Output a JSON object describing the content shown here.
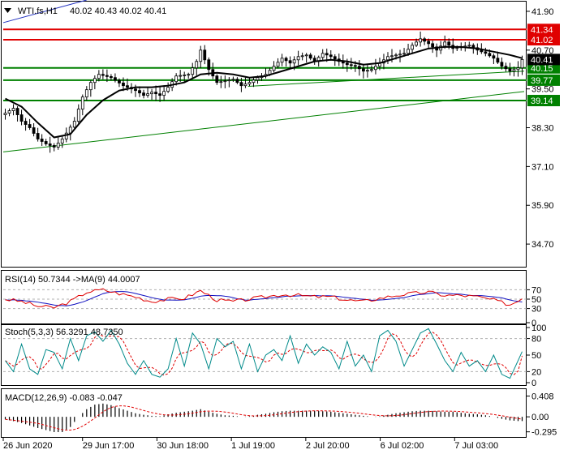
{
  "chart_data": {
    "type": "candlestick",
    "symbol_info": "WTI.fs,H1",
    "header_ohlc": "40.02 40.43 40.02 40.41",
    "price_ylim": [
      34.0,
      42.2
    ],
    "price_ticks": [
      "41.90",
      "40.70",
      "39.50",
      "38.30",
      "37.10",
      "35.90",
      "34.70"
    ],
    "last_price": "40.41",
    "levels": [
      {
        "value": 41.34,
        "label": "41.34",
        "color": "#e00000"
      },
      {
        "value": 41.02,
        "label": "41.02",
        "color": "#e00000"
      },
      {
        "value": 40.15,
        "label": "40.15",
        "color": "#008000"
      },
      {
        "value": 39.77,
        "label": "39.77",
        "color": "#008000"
      },
      {
        "value": 39.14,
        "label": "39.14",
        "color": "#008000"
      }
    ],
    "trendlines": [
      {
        "from": [
          0,
          37.55
        ],
        "to": [
          1.0,
          39.42
        ],
        "color": "#008000"
      },
      {
        "from": [
          0.47,
          39.58
        ],
        "to": [
          1.0,
          40.05
        ],
        "color": "#008000"
      },
      {
        "from": [
          0,
          41.55
        ],
        "to": [
          0.16,
          42.25
        ],
        "color": "#2030c0"
      }
    ],
    "x_tick_labels": [
      "26 Jun 2020",
      "29 Jun 17:00",
      "30 Jun 18:00",
      "1 Jul 19:00",
      "2 Jul 20:00",
      "6 Jul 02:00",
      "7 Jul 03:00"
    ],
    "close_anchors": [
      [
        0,
        38.75
      ],
      [
        2,
        38.9
      ],
      [
        4,
        38.5
      ],
      [
        6,
        38.3
      ],
      [
        8,
        37.95
      ],
      [
        10,
        37.8
      ],
      [
        12,
        37.7
      ],
      [
        14,
        37.95
      ],
      [
        17,
        38.5
      ],
      [
        19,
        39.25
      ],
      [
        21,
        39.7
      ],
      [
        23,
        39.95
      ],
      [
        26,
        39.85
      ],
      [
        29,
        39.6
      ],
      [
        32,
        39.45
      ],
      [
        34,
        39.3
      ],
      [
        36,
        39.4
      ],
      [
        38,
        39.3
      ],
      [
        40,
        39.55
      ],
      [
        42,
        39.9
      ],
      [
        45,
        39.95
      ],
      [
        47,
        40.35
      ],
      [
        48,
        40.7
      ],
      [
        50,
        40.1
      ],
      [
        52,
        39.7
      ],
      [
        54,
        39.75
      ],
      [
        56,
        39.8
      ],
      [
        58,
        39.6
      ],
      [
        60,
        39.7
      ],
      [
        62,
        39.85
      ],
      [
        64,
        39.95
      ],
      [
        66,
        40.2
      ],
      [
        68,
        40.45
      ],
      [
        70,
        40.3
      ],
      [
        72,
        40.5
      ],
      [
        74,
        40.55
      ],
      [
        76,
        40.35
      ],
      [
        78,
        40.6
      ],
      [
        80,
        40.5
      ],
      [
        82,
        40.35
      ],
      [
        84,
        40.25
      ],
      [
        86,
        40.2
      ],
      [
        88,
        40.05
      ],
      [
        90,
        40.1
      ],
      [
        92,
        40.3
      ],
      [
        94,
        40.5
      ],
      [
        96,
        40.55
      ],
      [
        98,
        40.6
      ],
      [
        100,
        40.85
      ],
      [
        102,
        41.05
      ],
      [
        104,
        40.9
      ],
      [
        106,
        40.7
      ],
      [
        108,
        40.95
      ],
      [
        110,
        40.75
      ],
      [
        112,
        40.8
      ],
      [
        114,
        40.85
      ],
      [
        116,
        40.7
      ],
      [
        118,
        40.6
      ],
      [
        120,
        40.45
      ],
      [
        122,
        40.2
      ],
      [
        124,
        40.05
      ],
      [
        126,
        40.15
      ],
      [
        127,
        40.41
      ]
    ],
    "ma_anchors": [
      [
        0,
        39.2
      ],
      [
        4,
        38.95
      ],
      [
        8,
        38.45
      ],
      [
        12,
        38.0
      ],
      [
        16,
        38.1
      ],
      [
        20,
        38.7
      ],
      [
        24,
        39.15
      ],
      [
        28,
        39.45
      ],
      [
        32,
        39.55
      ],
      [
        36,
        39.55
      ],
      [
        40,
        39.6
      ],
      [
        44,
        39.7
      ],
      [
        48,
        39.95
      ],
      [
        52,
        40.0
      ],
      [
        56,
        39.95
      ],
      [
        60,
        39.85
      ],
      [
        64,
        39.9
      ],
      [
        68,
        40.05
      ],
      [
        72,
        40.2
      ],
      [
        76,
        40.35
      ],
      [
        80,
        40.4
      ],
      [
        84,
        40.35
      ],
      [
        88,
        40.25
      ],
      [
        92,
        40.3
      ],
      [
        96,
        40.45
      ],
      [
        100,
        40.6
      ],
      [
        104,
        40.75
      ],
      [
        108,
        40.8
      ],
      [
        112,
        40.8
      ],
      [
        116,
        40.75
      ],
      [
        120,
        40.65
      ],
      [
        124,
        40.55
      ],
      [
        127,
        40.45
      ]
    ],
    "rsi": {
      "label": "RSI(14) 50.7344  ->MA(9) 44.0007",
      "ticks": [
        "70",
        "50",
        "30",
        "0"
      ],
      "levels": [
        70,
        50,
        30
      ],
      "ylim": [
        0,
        100
      ],
      "anchors": [
        [
          0,
          50
        ],
        [
          4,
          45
        ],
        [
          8,
          35
        ],
        [
          12,
          32
        ],
        [
          16,
          45
        ],
        [
          20,
          65
        ],
        [
          24,
          70
        ],
        [
          28,
          62
        ],
        [
          32,
          55
        ],
        [
          36,
          45
        ],
        [
          40,
          50
        ],
        [
          44,
          52
        ],
        [
          48,
          68
        ],
        [
          52,
          48
        ],
        [
          56,
          45
        ],
        [
          60,
          50
        ],
        [
          64,
          55
        ],
        [
          68,
          60
        ],
        [
          72,
          58
        ],
        [
          76,
          55
        ],
        [
          80,
          55
        ],
        [
          84,
          48
        ],
        [
          88,
          45
        ],
        [
          92,
          52
        ],
        [
          96,
          58
        ],
        [
          100,
          62
        ],
        [
          104,
          65
        ],
        [
          108,
          58
        ],
        [
          112,
          58
        ],
        [
          116,
          55
        ],
        [
          120,
          48
        ],
        [
          124,
          38
        ],
        [
          127,
          50.7344
        ]
      ],
      "ma_value": 44.0007
    },
    "stoch": {
      "label": "Stoch(5,3,3) 56.3291 48.7350",
      "ticks": [
        "100",
        "80",
        "50",
        "20",
        "0"
      ],
      "levels": [
        80,
        20
      ],
      "ylim": [
        0,
        100
      ],
      "anchors": [
        [
          0,
          40
        ],
        [
          2,
          20
        ],
        [
          4,
          70
        ],
        [
          6,
          25
        ],
        [
          8,
          15
        ],
        [
          10,
          60
        ],
        [
          12,
          55
        ],
        [
          14,
          25
        ],
        [
          16,
          80
        ],
        [
          18,
          40
        ],
        [
          20,
          85
        ],
        [
          22,
          92
        ],
        [
          24,
          75
        ],
        [
          26,
          95
        ],
        [
          28,
          70
        ],
        [
          30,
          35
        ],
        [
          32,
          15
        ],
        [
          34,
          40
        ],
        [
          36,
          15
        ],
        [
          38,
          10
        ],
        [
          40,
          25
        ],
        [
          42,
          80
        ],
        [
          44,
          30
        ],
        [
          46,
          90
        ],
        [
          48,
          70
        ],
        [
          50,
          25
        ],
        [
          52,
          80
        ],
        [
          54,
          65
        ],
        [
          56,
          75
        ],
        [
          58,
          25
        ],
        [
          60,
          70
        ],
        [
          62,
          20
        ],
        [
          64,
          50
        ],
        [
          66,
          60
        ],
        [
          68,
          40
        ],
        [
          70,
          85
        ],
        [
          72,
          35
        ],
        [
          74,
          70
        ],
        [
          76,
          50
        ],
        [
          78,
          65
        ],
        [
          80,
          55
        ],
        [
          82,
          25
        ],
        [
          84,
          75
        ],
        [
          86,
          30
        ],
        [
          88,
          50
        ],
        [
          90,
          20
        ],
        [
          92,
          85
        ],
        [
          94,
          95
        ],
        [
          96,
          75
        ],
        [
          98,
          30
        ],
        [
          100,
          60
        ],
        [
          102,
          90
        ],
        [
          104,
          98
        ],
        [
          106,
          70
        ],
        [
          108,
          40
        ],
        [
          110,
          20
        ],
        [
          112,
          55
        ],
        [
          114,
          30
        ],
        [
          116,
          40
        ],
        [
          118,
          20
        ],
        [
          120,
          50
        ],
        [
          122,
          15
        ],
        [
          124,
          8
        ],
        [
          126,
          40
        ],
        [
          127,
          56.3291
        ]
      ],
      "signal_last": 48.735
    },
    "macd": {
      "label": "MACD(12,26,9) -0.083 -0.047",
      "ticks": [
        "0.408",
        "0.00",
        "-0.295"
      ],
      "ylim": [
        -0.38,
        0.48
      ],
      "anchors": [
        [
          0,
          -0.05
        ],
        [
          4,
          -0.12
        ],
        [
          8,
          -0.22
        ],
        [
          12,
          -0.3
        ],
        [
          14,
          -0.3
        ],
        [
          16,
          -0.2
        ],
        [
          18,
          0.0
        ],
        [
          20,
          0.15
        ],
        [
          22,
          0.24
        ],
        [
          24,
          0.26
        ],
        [
          26,
          0.23
        ],
        [
          28,
          0.17
        ],
        [
          30,
          0.12
        ],
        [
          32,
          0.07
        ],
        [
          34,
          0.04
        ],
        [
          36,
          0.02
        ],
        [
          38,
          0.01
        ],
        [
          40,
          0.05
        ],
        [
          42,
          0.08
        ],
        [
          44,
          0.1
        ],
        [
          46,
          0.12
        ],
        [
          48,
          0.15
        ],
        [
          50,
          0.1
        ],
        [
          52,
          0.06
        ],
        [
          54,
          0.03
        ],
        [
          56,
          0.02
        ],
        [
          58,
          0.0
        ],
        [
          60,
          0.01
        ],
        [
          62,
          0.04
        ],
        [
          64,
          0.06
        ],
        [
          66,
          0.09
        ],
        [
          68,
          0.11
        ],
        [
          70,
          0.12
        ],
        [
          72,
          0.12
        ],
        [
          74,
          0.12
        ],
        [
          76,
          0.12
        ],
        [
          78,
          0.11
        ],
        [
          80,
          0.1
        ],
        [
          82,
          0.08
        ],
        [
          84,
          0.06
        ],
        [
          86,
          0.04
        ],
        [
          88,
          0.02
        ],
        [
          90,
          0.0
        ],
        [
          92,
          0.01
        ],
        [
          94,
          0.04
        ],
        [
          96,
          0.07
        ],
        [
          98,
          0.09
        ],
        [
          100,
          0.11
        ],
        [
          102,
          0.12
        ],
        [
          104,
          0.12
        ],
        [
          106,
          0.11
        ],
        [
          108,
          0.1
        ],
        [
          110,
          0.1
        ],
        [
          112,
          0.08
        ],
        [
          114,
          0.06
        ],
        [
          116,
          0.05
        ],
        [
          118,
          0.03
        ],
        [
          120,
          0.0
        ],
        [
          122,
          -0.04
        ],
        [
          124,
          -0.07
        ],
        [
          126,
          -0.083
        ],
        [
          127,
          -0.083
        ]
      ],
      "signal_last": -0.047
    },
    "colors": {
      "candle": "#000000",
      "ma_line": "#000000",
      "rsi_line": "#e00000",
      "rsi_ma": "#1010c0",
      "stoch_main": "#008a8a",
      "stoch_signal": "#e00000",
      "macd_hist": "#000000",
      "macd_signal": "#e00000",
      "level_dashed": "#b0b0b0",
      "axis": "#000000"
    }
  }
}
